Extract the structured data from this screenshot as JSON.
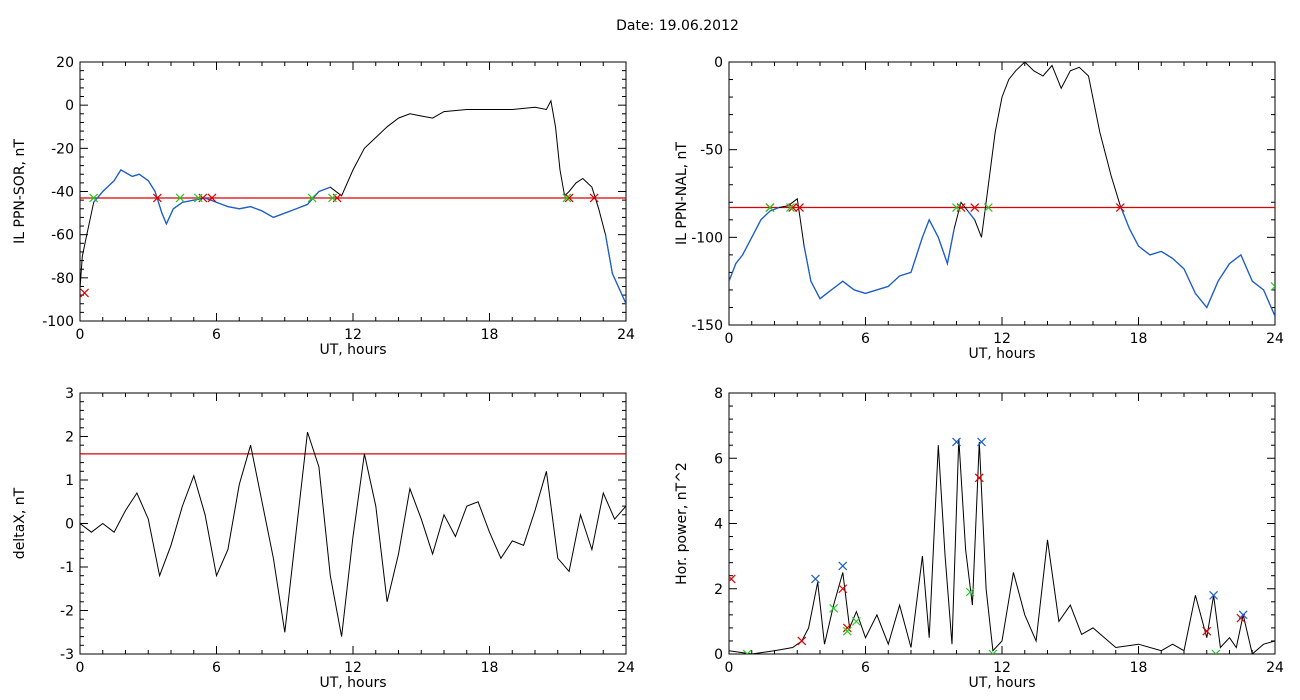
{
  "header": {
    "title": "Date:  19.06.2012"
  },
  "colors": {
    "line": "#000000",
    "threshold": "#dd0000",
    "segment": "#1a5fd0",
    "marker_red": "#dd0000",
    "marker_green": "#22cc22",
    "marker_blue": "#1a5fd0"
  },
  "chart_data": [
    {
      "type": "line",
      "xlabel": "UT, hours",
      "ylabel": "IL PPN-SOR, nT",
      "xlim": [
        0,
        24
      ],
      "ylim": [
        -100,
        20
      ],
      "xticks": [
        0,
        6,
        12,
        18,
        24
      ],
      "yticks": [
        -100,
        -80,
        -60,
        -40,
        -20,
        0,
        20
      ],
      "threshold": -43,
      "x": [
        0,
        0.1,
        0.3,
        0.6,
        1,
        1.5,
        1.8,
        2.3,
        2.6,
        3.0,
        3.3,
        3.6,
        3.8,
        4.1,
        4.5,
        5.0,
        5.5,
        6.0,
        6.5,
        7.0,
        7.5,
        8.0,
        8.5,
        9.0,
        9.5,
        10.0,
        10.5,
        11.0,
        11.5,
        12.0,
        12.5,
        13.0,
        13.5,
        14.0,
        14.5,
        15.0,
        15.5,
        16.0,
        17.0,
        18.0,
        19.0,
        20.0,
        20.5,
        20.7,
        20.9,
        21.1,
        21.3,
        21.5,
        21.8,
        22.1,
        22.5,
        22.8,
        23.1,
        23.4,
        23.7,
        24.0
      ],
      "y": [
        -85,
        -70,
        -60,
        -45,
        -40,
        -35,
        -30,
        -33,
        -32,
        -35,
        -40,
        -50,
        -55,
        -48,
        -45,
        -44,
        -43,
        -45,
        -47,
        -48,
        -47,
        -49,
        -52,
        -50,
        -48,
        -46,
        -40,
        -38,
        -42,
        -30,
        -20,
        -15,
        -10,
        -6,
        -4,
        -5,
        -6,
        -3,
        -2,
        -2,
        -2,
        -1,
        -2,
        2,
        -10,
        -30,
        -42,
        -40,
        -36,
        -34,
        -38,
        -48,
        -60,
        -78,
        -85,
        -92
      ],
      "segment_ranges": [
        [
          0.6,
          11.0
        ],
        [
          22.9,
          24
        ]
      ],
      "markers": {
        "red": [
          [
            0.2,
            -87
          ],
          [
            3.4,
            -43
          ],
          [
            5.4,
            -43
          ],
          [
            5.8,
            -43
          ],
          [
            11.3,
            -43
          ],
          [
            21.5,
            -43
          ],
          [
            22.6,
            -43
          ]
        ],
        "green": [
          [
            0.6,
            -43
          ],
          [
            4.4,
            -43
          ],
          [
            5.2,
            -43
          ],
          [
            10.2,
            -43
          ],
          [
            11.1,
            -43
          ],
          [
            21.4,
            -43
          ]
        ]
      }
    },
    {
      "type": "line",
      "xlabel": "UT, hours",
      "ylabel": "IL PPN-NAL, nT",
      "xlim": [
        0,
        24
      ],
      "ylim": [
        -150,
        0
      ],
      "xticks": [
        0,
        6,
        12,
        18,
        24
      ],
      "yticks": [
        -150,
        -100,
        -50,
        0
      ],
      "threshold": -83,
      "x": [
        0,
        0.3,
        0.6,
        1.0,
        1.4,
        1.8,
        2.2,
        2.6,
        3.0,
        3.3,
        3.6,
        4.0,
        4.5,
        5.0,
        5.5,
        6.0,
        6.5,
        7.0,
        7.5,
        8.0,
        8.5,
        8.8,
        9.2,
        9.6,
        9.9,
        10.2,
        10.5,
        10.8,
        11.1,
        11.4,
        11.7,
        12.0,
        12.3,
        12.6,
        13.0,
        13.4,
        13.8,
        14.2,
        14.6,
        15.0,
        15.4,
        15.8,
        16.3,
        16.8,
        17.2,
        17.6,
        18.0,
        18.5,
        19.0,
        19.5,
        20.0,
        20.5,
        21.0,
        21.5,
        22.0,
        22.5,
        23.0,
        23.5,
        24.0
      ],
      "y": [
        -125,
        -115,
        -110,
        -100,
        -90,
        -85,
        -83,
        -82,
        -78,
        -105,
        -125,
        -135,
        -130,
        -125,
        -130,
        -132,
        -130,
        -128,
        -122,
        -120,
        -100,
        -90,
        -100,
        -115,
        -95,
        -80,
        -85,
        -90,
        -100,
        -70,
        -40,
        -20,
        -10,
        -5,
        0,
        -5,
        -8,
        -2,
        -15,
        -5,
        -3,
        -8,
        -40,
        -65,
        -82,
        -95,
        -105,
        -110,
        -108,
        -112,
        -118,
        -132,
        -140,
        -125,
        -115,
        -110,
        -125,
        -130,
        -145
      ],
      "segment_ranges": [
        [
          0,
          2.4
        ],
        [
          3.2,
          9.9
        ],
        [
          10.4,
          10.9
        ],
        [
          11.1,
          11.3
        ],
        [
          17.2,
          24
        ]
      ],
      "markers": {
        "red": [
          [
            1.8,
            -83
          ],
          [
            2.8,
            -83
          ],
          [
            3.1,
            -83
          ],
          [
            10.2,
            -83
          ],
          [
            10.8,
            -83
          ],
          [
            17.2,
            -83
          ]
        ],
        "green": [
          [
            1.8,
            -83
          ],
          [
            2.7,
            -83
          ],
          [
            10.0,
            -83
          ],
          [
            11.4,
            -83
          ],
          [
            24.0,
            -128
          ]
        ]
      }
    },
    {
      "type": "line",
      "xlabel": "UT, hours",
      "ylabel": "deltaX, nT",
      "xlim": [
        0,
        24
      ],
      "ylim": [
        -3,
        3
      ],
      "xticks": [
        0,
        6,
        12,
        18,
        24
      ],
      "yticks": [
        -3,
        -2,
        -1,
        0,
        1,
        2,
        3
      ],
      "threshold": 1.6,
      "x": [
        0,
        0.5,
        1.0,
        1.5,
        2.0,
        2.5,
        3.0,
        3.5,
        4.0,
        4.5,
        5.0,
        5.5,
        6.0,
        6.5,
        7.0,
        7.5,
        8.0,
        8.5,
        9.0,
        9.5,
        10.0,
        10.5,
        11.0,
        11.5,
        12.0,
        12.5,
        13.0,
        13.5,
        14.0,
        14.5,
        15.0,
        15.5,
        16.0,
        16.5,
        17.0,
        17.5,
        18.0,
        18.5,
        19.0,
        19.5,
        20.0,
        20.5,
        21.0,
        21.5,
        22.0,
        22.5,
        23.0,
        23.5,
        24.0
      ],
      "y": [
        0.0,
        -0.2,
        0.0,
        -0.2,
        0.3,
        0.7,
        0.1,
        -1.2,
        -0.5,
        0.4,
        1.1,
        0.2,
        -1.2,
        -0.6,
        0.9,
        1.8,
        0.5,
        -0.8,
        -2.5,
        -0.2,
        2.1,
        1.3,
        -1.2,
        -2.6,
        -0.3,
        1.6,
        0.4,
        -1.8,
        -0.7,
        0.8,
        0.1,
        -0.7,
        0.2,
        -0.3,
        0.4,
        0.5,
        -0.2,
        -0.8,
        -0.4,
        -0.5,
        0.3,
        1.2,
        -0.8,
        -1.1,
        0.2,
        -0.6,
        0.7,
        0.1,
        0.4
      ],
      "segment_ranges": [],
      "markers": {
        "red": [],
        "green": []
      }
    },
    {
      "type": "line",
      "xlabel": "UT, hours",
      "ylabel": "Hor. power, nT^2",
      "xlim": [
        0,
        24
      ],
      "ylim": [
        0,
        8
      ],
      "xticks": [
        0,
        6,
        12,
        18,
        24
      ],
      "yticks": [
        0,
        2,
        4,
        6,
        8
      ],
      "threshold": null,
      "x": [
        0,
        1,
        2,
        2.8,
        3.2,
        3.5,
        3.9,
        4.2,
        4.6,
        5.0,
        5.3,
        5.6,
        6.0,
        6.5,
        7.0,
        7.5,
        8.0,
        8.5,
        8.8,
        9.2,
        9.5,
        9.8,
        10.1,
        10.4,
        10.7,
        11.0,
        11.3,
        11.6,
        12.0,
        12.5,
        13.0,
        13.5,
        14.0,
        14.5,
        15.0,
        15.5,
        16.0,
        17.0,
        18.0,
        19.0,
        19.5,
        20.0,
        20.5,
        21.0,
        21.3,
        21.6,
        22.0,
        22.3,
        22.6,
        23.0,
        23.5,
        24.0
      ],
      "y": [
        0.1,
        0.0,
        0.1,
        0.2,
        0.4,
        0.8,
        2.2,
        0.3,
        1.5,
        2.5,
        0.8,
        1.3,
        0.5,
        1.2,
        0.3,
        1.5,
        0.2,
        3.0,
        0.5,
        6.4,
        3.0,
        0.3,
        6.6,
        3.2,
        1.5,
        6.5,
        2.0,
        0.1,
        0.4,
        2.5,
        1.2,
        0.4,
        3.5,
        1.0,
        1.5,
        0.6,
        0.8,
        0.2,
        0.3,
        0.1,
        0.3,
        0.1,
        1.8,
        0.5,
        1.8,
        0.2,
        0.5,
        0.2,
        1.2,
        0.0,
        0.3,
        0.4
      ],
      "segment_ranges": [],
      "markers": {
        "red": [
          [
            0.1,
            2.3
          ],
          [
            3.2,
            0.4
          ],
          [
            5.0,
            2.0
          ],
          [
            5.2,
            0.8
          ],
          [
            11.0,
            5.4
          ],
          [
            21.0,
            0.7
          ],
          [
            22.5,
            1.1
          ]
        ],
        "green": [
          [
            0.8,
            0.0
          ],
          [
            4.6,
            1.4
          ],
          [
            5.2,
            0.7
          ],
          [
            5.6,
            1.0
          ],
          [
            10.6,
            1.9
          ],
          [
            11.6,
            0.0
          ],
          [
            21.4,
            0.0
          ]
        ],
        "blue": [
          [
            3.8,
            2.3
          ],
          [
            5.0,
            2.7
          ],
          [
            10.0,
            6.5
          ],
          [
            11.1,
            6.5
          ],
          [
            21.3,
            1.8
          ],
          [
            22.6,
            1.2
          ]
        ]
      }
    }
  ]
}
